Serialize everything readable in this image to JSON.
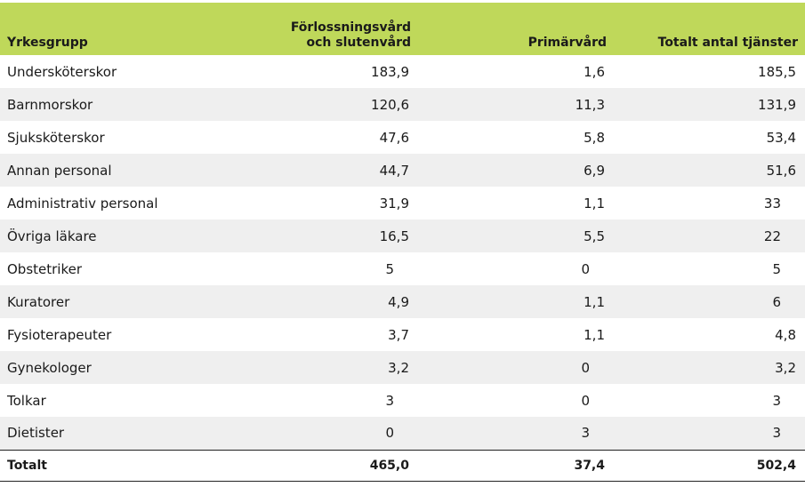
{
  "headers": {
    "col1": "Yrkesgrupp",
    "col2_line1": "Förlossningsvård",
    "col2_line2": "och slutenvård",
    "col3": "Primärvård",
    "col4": "Totalt antal tjänster"
  },
  "rows": [
    {
      "group": "Undersköterskor",
      "forlossning": "183,9",
      "primar": "1,6",
      "total": "185,5"
    },
    {
      "group": "Barnmorskor",
      "forlossning": "120,6",
      "primar": "11,3",
      "total": "131,9"
    },
    {
      "group": "Sjuksköterskor",
      "forlossning": "47,6",
      "primar": "5,8",
      "total": "53,4"
    },
    {
      "group": "Annan personal",
      "forlossning": "44,7",
      "primar": "6,9",
      "total": "51,6"
    },
    {
      "group": "Administrativ personal",
      "forlossning": "31,9",
      "primar": "1,1",
      "total": "33"
    },
    {
      "group": "Övriga läkare",
      "forlossning": "16,5",
      "primar": "5,5",
      "total": "22"
    },
    {
      "group": "Obstetriker",
      "forlossning": "5",
      "primar": "0",
      "total": "5"
    },
    {
      "group": "Kuratorer",
      "forlossning": "4,9",
      "primar": "1,1",
      "total": "6"
    },
    {
      "group": "Fysioterapeuter",
      "forlossning": "3,7",
      "primar": "1,1",
      "total": "4,8"
    },
    {
      "group": "Gynekologer",
      "forlossning": "3,2",
      "primar": "0",
      "total": "3,2"
    },
    {
      "group": "Tolkar",
      "forlossning": "3",
      "primar": "0",
      "total": "3"
    },
    {
      "group": "Dietister",
      "forlossning": "0",
      "primar": "3",
      "total": "3"
    }
  ],
  "total_row": {
    "group": "Totalt",
    "forlossning": "465,0",
    "primar": "37,4",
    "total": "502,4"
  },
  "colors": {
    "header_bg": "#bfd85a",
    "stripe_bg": "#efefef"
  }
}
